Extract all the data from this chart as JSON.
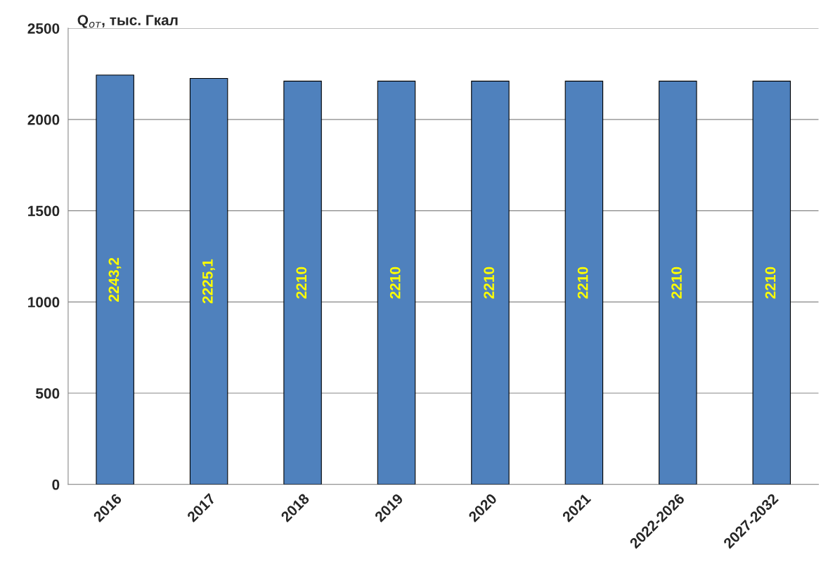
{
  "chart_data": {
    "type": "bar",
    "ylabel": "Q$_{от}$, тыс. Гкал",
    "categories": [
      "2016",
      "2017",
      "2018",
      "2019",
      "2020",
      "2021",
      "2022-2026",
      "2027-2032"
    ],
    "values": [
      2243.2,
      2225.1,
      2210,
      2210,
      2210,
      2210,
      2210,
      2210
    ],
    "value_labels": [
      "2243,2",
      "2225,1",
      "2210",
      "2210",
      "2210",
      "2210",
      "2210",
      "2210"
    ],
    "color": "#4f81bd",
    "ylim": [
      0,
      2500
    ],
    "yticks": [
      0,
      500,
      1000,
      1500,
      2000,
      2500
    ],
    "grid": "y",
    "legend": false
  }
}
